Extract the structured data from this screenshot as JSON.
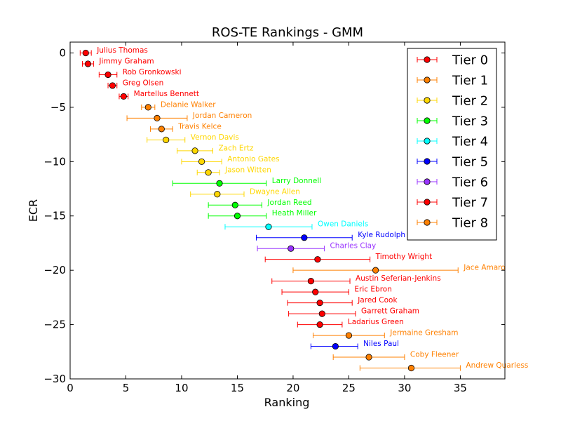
{
  "chart_data": {
    "type": "scatter",
    "title": "ROS-TE Rankings - GMM",
    "xlabel": "Ranking",
    "ylabel": "ECR",
    "xlim": [
      0,
      39
    ],
    "ylim": [
      -30,
      1
    ],
    "xticks": [
      "0",
      "5",
      "10",
      "15",
      "20",
      "25",
      "30",
      "35"
    ],
    "yticks": [
      "0",
      "−5",
      "−10",
      "−15",
      "−20",
      "−25",
      "−30"
    ],
    "legend_position": "top-right",
    "grid": false,
    "tiers": [
      {
        "name": "Tier 0",
        "color": "#ff0000"
      },
      {
        "name": "Tier 1",
        "color": "#ff8000"
      },
      {
        "name": "Tier 2",
        "color": "#ffd700"
      },
      {
        "name": "Tier 3",
        "color": "#00ff00"
      },
      {
        "name": "Tier 4",
        "color": "#00ffff"
      },
      {
        "name": "Tier 5",
        "color": "#0000ff"
      },
      {
        "name": "Tier 6",
        "color": "#9933ff"
      },
      {
        "name": "Tier 7",
        "color": "#ff0000"
      },
      {
        "name": "Tier 8",
        "color": "#ff8000"
      }
    ],
    "points": [
      {
        "name": "Julius Thomas",
        "x": 1.4,
        "y": 0,
        "xmin": 0.9,
        "xmax": 1.9,
        "tier": 0
      },
      {
        "name": "Jimmy Graham",
        "x": 1.6,
        "y": -1,
        "xmin": 1.1,
        "xmax": 2.1,
        "tier": 0
      },
      {
        "name": "Rob Gronkowski",
        "x": 3.4,
        "y": -2,
        "xmin": 2.6,
        "xmax": 4.2,
        "tier": 0
      },
      {
        "name": "Greg Olsen",
        "x": 3.8,
        "y": -3,
        "xmin": 3.4,
        "xmax": 4.2,
        "tier": 0
      },
      {
        "name": "Martellus Bennett",
        "x": 4.8,
        "y": -4,
        "xmin": 4.4,
        "xmax": 5.2,
        "tier": 0
      },
      {
        "name": "Delanie Walker",
        "x": 7.0,
        "y": -5,
        "xmin": 6.4,
        "xmax": 7.6,
        "tier": 1
      },
      {
        "name": "Jordan Cameron",
        "x": 7.8,
        "y": -6,
        "xmin": 5.1,
        "xmax": 10.5,
        "tier": 1
      },
      {
        "name": "Travis Kelce",
        "x": 8.2,
        "y": -7,
        "xmin": 7.2,
        "xmax": 9.2,
        "tier": 1
      },
      {
        "name": "Vernon Davis",
        "x": 8.6,
        "y": -8,
        "xmin": 6.9,
        "xmax": 10.3,
        "tier": 2
      },
      {
        "name": "Zach Ertz",
        "x": 11.2,
        "y": -9,
        "xmin": 9.6,
        "xmax": 12.8,
        "tier": 2
      },
      {
        "name": "Antonio Gates",
        "x": 11.8,
        "y": -10,
        "xmin": 10.0,
        "xmax": 13.6,
        "tier": 2
      },
      {
        "name": "Jason Witten",
        "x": 12.4,
        "y": -11,
        "xmin": 11.4,
        "xmax": 13.4,
        "tier": 2
      },
      {
        "name": "Larry Donnell",
        "x": 13.4,
        "y": -12,
        "xmin": 9.2,
        "xmax": 17.6,
        "tier": 3
      },
      {
        "name": "Dwayne Allen",
        "x": 13.2,
        "y": -13,
        "xmin": 10.8,
        "xmax": 15.6,
        "tier": 2
      },
      {
        "name": "Jordan Reed",
        "x": 14.8,
        "y": -14,
        "xmin": 12.4,
        "xmax": 17.2,
        "tier": 3
      },
      {
        "name": "Heath Miller",
        "x": 15.0,
        "y": -15,
        "xmin": 12.4,
        "xmax": 17.6,
        "tier": 3
      },
      {
        "name": "Owen Daniels",
        "x": 17.8,
        "y": -16,
        "xmin": 13.9,
        "xmax": 21.7,
        "tier": 4
      },
      {
        "name": "Kyle Rudolph",
        "x": 21.0,
        "y": -17,
        "xmin": 16.7,
        "xmax": 25.3,
        "tier": 5
      },
      {
        "name": "Charles Clay",
        "x": 19.8,
        "y": -18,
        "xmin": 16.8,
        "xmax": 22.8,
        "tier": 6
      },
      {
        "name": "Timothy Wright",
        "x": 22.2,
        "y": -19,
        "xmin": 17.5,
        "xmax": 26.9,
        "tier": 7
      },
      {
        "name": "Jace Amaro",
        "x": 27.4,
        "y": -20,
        "xmin": 20.0,
        "xmax": 34.8,
        "tier": 8
      },
      {
        "name": "Austin Seferian-Jenkins",
        "x": 21.6,
        "y": -21,
        "xmin": 18.1,
        "xmax": 25.1,
        "tier": 7
      },
      {
        "name": "Eric Ebron",
        "x": 22.0,
        "y": -22,
        "xmin": 19.0,
        "xmax": 25.0,
        "tier": 7
      },
      {
        "name": "Jared Cook",
        "x": 22.4,
        "y": -23,
        "xmin": 19.5,
        "xmax": 25.3,
        "tier": 7
      },
      {
        "name": "Garrett Graham",
        "x": 22.6,
        "y": -24,
        "xmin": 19.6,
        "xmax": 25.6,
        "tier": 7
      },
      {
        "name": "Ladarius Green",
        "x": 22.4,
        "y": -25,
        "xmin": 20.4,
        "xmax": 24.4,
        "tier": 7
      },
      {
        "name": "Jermaine Gresham",
        "x": 25.0,
        "y": -26,
        "xmin": 21.8,
        "xmax": 28.2,
        "tier": 8
      },
      {
        "name": "Niles Paul",
        "x": 23.8,
        "y": -27,
        "xmin": 21.6,
        "xmax": 25.8,
        "tier": 5
      },
      {
        "name": "Coby Fleener",
        "x": 26.8,
        "y": -28,
        "xmin": 23.6,
        "xmax": 30.0,
        "tier": 8
      },
      {
        "name": "Andrew Quarless",
        "x": 30.6,
        "y": -29,
        "xmin": 26.0,
        "xmax": 35.0,
        "tier": 8
      }
    ]
  }
}
